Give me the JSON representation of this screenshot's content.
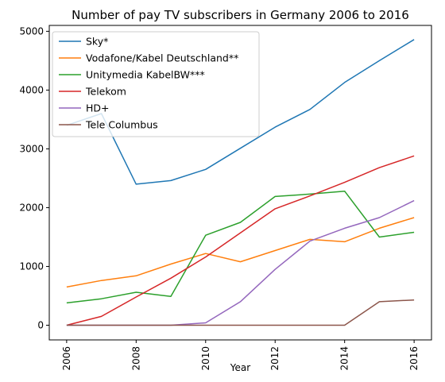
{
  "chart_data": {
    "type": "line",
    "title": "Number of pay TV subscribers in Germany 2006 to 2016",
    "xlabel": "Year",
    "ylabel": "",
    "x": [
      2006,
      2007,
      2008,
      2009,
      2010,
      2011,
      2012,
      2013,
      2014,
      2015,
      2016
    ],
    "xticks": [
      "2006",
      "2008",
      "2010",
      "2012",
      "2014",
      "2016"
    ],
    "yticks": [
      "0",
      "1000",
      "2000",
      "3000",
      "4000",
      "5000"
    ],
    "xlim": [
      2005.5,
      2016.5
    ],
    "ylim": [
      -250,
      5100
    ],
    "grid": false,
    "legend_position": "upper left",
    "series": [
      {
        "name": "Sky*",
        "color": "#1f77b4",
        "values": [
          3400,
          3600,
          2400,
          2460,
          2650,
          3010,
          3370,
          3670,
          4130,
          4500,
          4860
        ]
      },
      {
        "name": "Vodafone/Kabel Deutschland**",
        "color": "#ff7f0e",
        "values": [
          650,
          760,
          840,
          1040,
          1220,
          1080,
          1270,
          1460,
          1420,
          1650,
          1830
        ]
      },
      {
        "name": "Unitymedia KabelBW***",
        "color": "#2ca02c",
        "values": [
          380,
          450,
          560,
          490,
          1530,
          1750,
          2190,
          2230,
          2280,
          1500,
          1580
        ]
      },
      {
        "name": "Telekom",
        "color": "#d62728",
        "values": [
          0,
          150,
          480,
          800,
          1160,
          1570,
          1980,
          2200,
          2430,
          2680,
          2880
        ]
      },
      {
        "name": "HD+",
        "color": "#9467bd",
        "values": [
          0,
          0,
          0,
          0,
          40,
          400,
          950,
          1430,
          1650,
          1830,
          2120
        ]
      },
      {
        "name": "Tele Columbus",
        "color": "#8c564b",
        "values": [
          0,
          0,
          0,
          0,
          0,
          0,
          0,
          0,
          0,
          400,
          430
        ]
      }
    ]
  }
}
